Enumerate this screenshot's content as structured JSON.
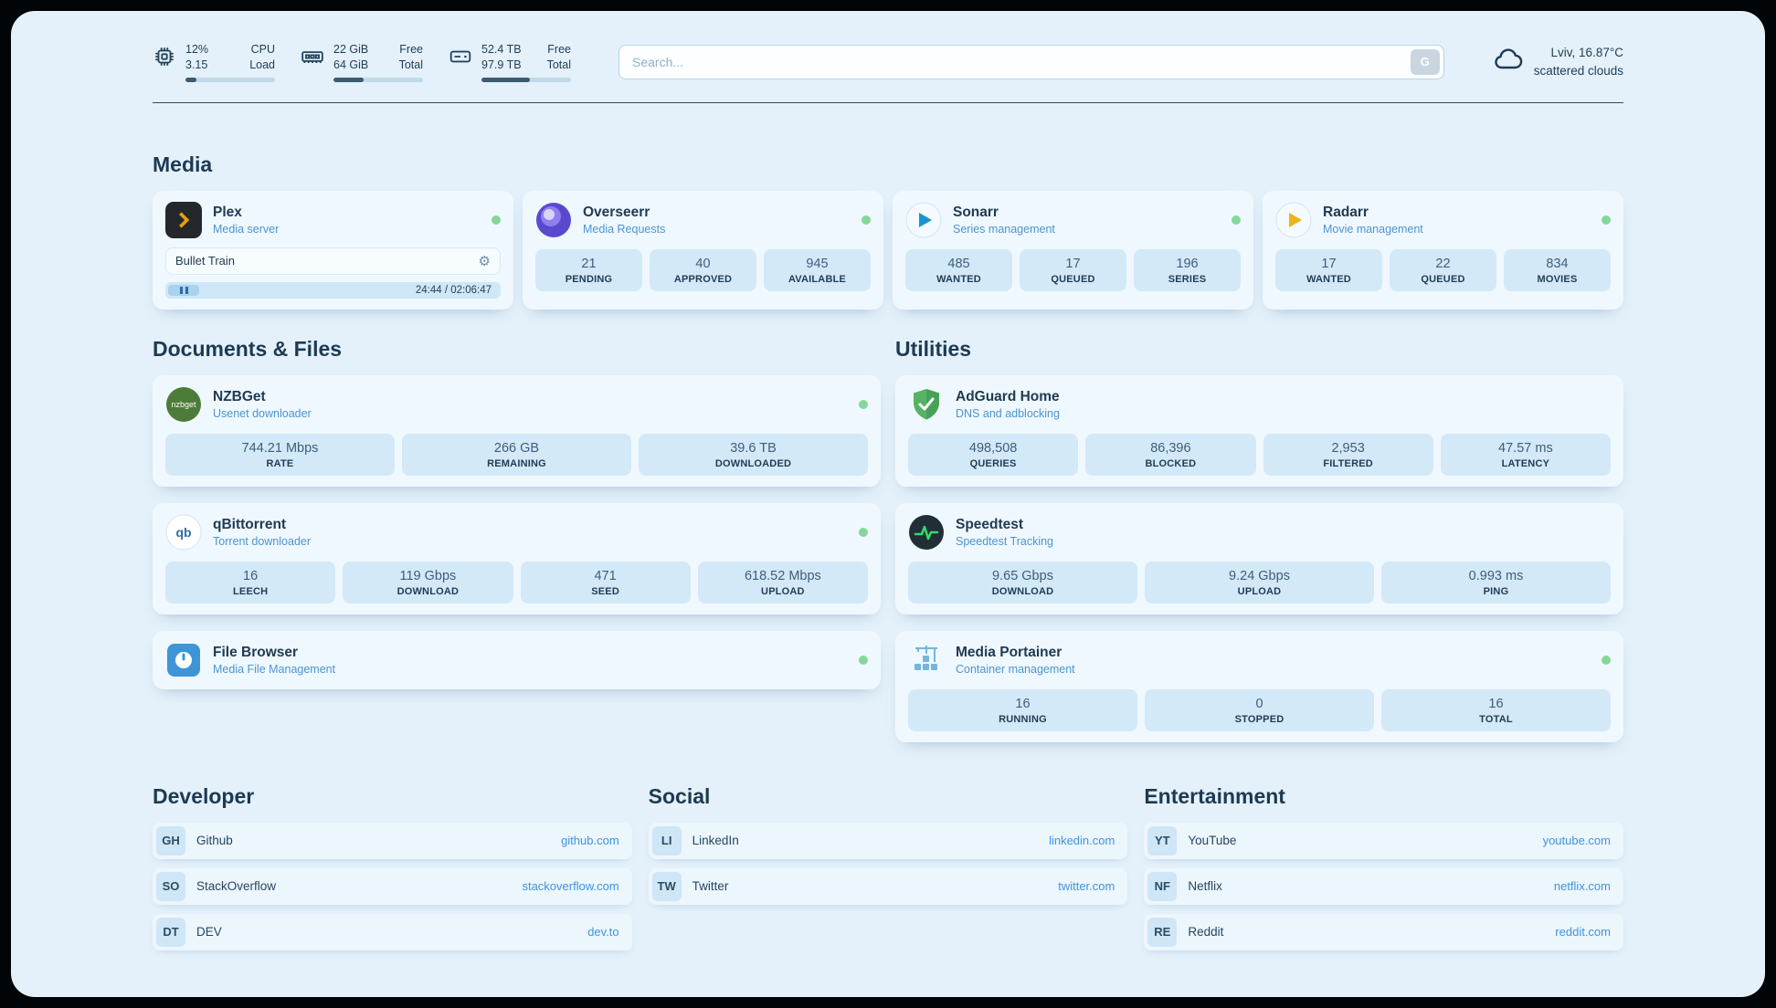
{
  "system": {
    "cpu": {
      "rows": [
        {
          "value": "12%",
          "label": "CPU"
        },
        {
          "value": "3.15",
          "label": "Load"
        }
      ],
      "progress_pct": 12
    },
    "memory": {
      "rows": [
        {
          "value": "22 GiB",
          "label": "Free"
        },
        {
          "value": "64 GiB",
          "label": "Total"
        }
      ],
      "progress_pct": 34
    },
    "disk": {
      "rows": [
        {
          "value": "52.4 TB",
          "label": "Free"
        },
        {
          "value": "97.9 TB",
          "label": "Total"
        }
      ],
      "progress_pct": 54
    }
  },
  "search": {
    "placeholder": "Search...",
    "button_label": "G"
  },
  "weather": {
    "location": "Lviv, 16.87°C",
    "condition": "scattered clouds"
  },
  "sections": {
    "media": "Media",
    "documents": "Documents & Files",
    "utilities": "Utilities",
    "developer": "Developer",
    "social": "Social",
    "entertainment": "Entertainment"
  },
  "apps": {
    "plex": {
      "name": "Plex",
      "subtitle": "Media server",
      "player": {
        "title": "Bullet Train",
        "time": "24:44 / 02:06:47"
      }
    },
    "overseerr": {
      "name": "Overseerr",
      "subtitle": "Media Requests",
      "stats": [
        {
          "value": "21",
          "label": "PENDING"
        },
        {
          "value": "40",
          "label": "APPROVED"
        },
        {
          "value": "945",
          "label": "AVAILABLE"
        }
      ]
    },
    "sonarr": {
      "name": "Sonarr",
      "subtitle": "Series management",
      "stats": [
        {
          "value": "485",
          "label": "WANTED"
        },
        {
          "value": "17",
          "label": "QUEUED"
        },
        {
          "value": "196",
          "label": "SERIES"
        }
      ]
    },
    "radarr": {
      "name": "Radarr",
      "subtitle": "Movie management",
      "stats": [
        {
          "value": "17",
          "label": "WANTED"
        },
        {
          "value": "22",
          "label": "QUEUED"
        },
        {
          "value": "834",
          "label": "MOVIES"
        }
      ]
    },
    "nzbget": {
      "name": "NZBGet",
      "subtitle": "Usenet downloader",
      "icon_text": "nzbget",
      "stats": [
        {
          "value": "744.21 Mbps",
          "label": "RATE"
        },
        {
          "value": "266 GB",
          "label": "REMAINING"
        },
        {
          "value": "39.6 TB",
          "label": "DOWNLOADED"
        }
      ]
    },
    "qbittorrent": {
      "name": "qBittorrent",
      "subtitle": "Torrent downloader",
      "icon_text": "qb",
      "stats": [
        {
          "value": "16",
          "label": "LEECH"
        },
        {
          "value": "119 Gbps",
          "label": "DOWNLOAD"
        },
        {
          "value": "471",
          "label": "SEED"
        },
        {
          "value": "618.52 Mbps",
          "label": "UPLOAD"
        }
      ]
    },
    "filebrowser": {
      "name": "File Browser",
      "subtitle": "Media File Management"
    },
    "adguard": {
      "name": "AdGuard Home",
      "subtitle": "DNS and adblocking",
      "stats": [
        {
          "value": "498,508",
          "label": "QUERIES"
        },
        {
          "value": "86,396",
          "label": "BLOCKED"
        },
        {
          "value": "2,953",
          "label": "FILTERED"
        },
        {
          "value": "47.57 ms",
          "label": "LATENCY"
        }
      ]
    },
    "speedtest": {
      "name": "Speedtest",
      "subtitle": "Speedtest Tracking",
      "stats": [
        {
          "value": "9.65 Gbps",
          "label": "DOWNLOAD"
        },
        {
          "value": "9.24 Gbps",
          "label": "UPLOAD"
        },
        {
          "value": "0.993 ms",
          "label": "PING"
        }
      ]
    },
    "portainer": {
      "name": "Media Portainer",
      "subtitle": "Container management",
      "stats": [
        {
          "value": "16",
          "label": "RUNNING"
        },
        {
          "value": "0",
          "label": "STOPPED"
        },
        {
          "value": "16",
          "label": "TOTAL"
        }
      ]
    }
  },
  "bookmarks": {
    "developer": [
      {
        "abbr": "GH",
        "name": "Github",
        "url": "github.com"
      },
      {
        "abbr": "SO",
        "name": "StackOverflow",
        "url": "stackoverflow.com"
      },
      {
        "abbr": "DT",
        "name": "DEV",
        "url": "dev.to"
      }
    ],
    "social": [
      {
        "abbr": "LI",
        "name": "LinkedIn",
        "url": "linkedin.com"
      },
      {
        "abbr": "TW",
        "name": "Twitter",
        "url": "twitter.com"
      }
    ],
    "entertainment": [
      {
        "abbr": "YT",
        "name": "YouTube",
        "url": "youtube.com"
      },
      {
        "abbr": "NF",
        "name": "Netflix",
        "url": "netflix.com"
      },
      {
        "abbr": "RE",
        "name": "Reddit",
        "url": "reddit.com"
      }
    ]
  }
}
